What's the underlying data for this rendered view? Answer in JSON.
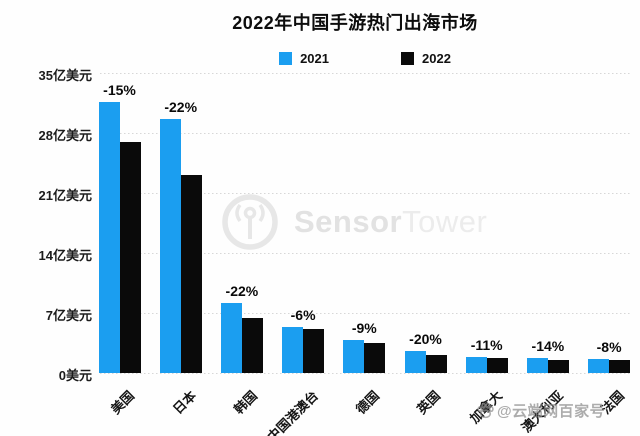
{
  "chart_data": {
    "type": "bar",
    "title": "2022年中国手游热门出海市场",
    "unit": "亿美元",
    "categories": [
      "美国",
      "日本",
      "韩国",
      "中国港澳台",
      "德国",
      "英国",
      "加拿大",
      "澳大利亚",
      "法国"
    ],
    "series": [
      {
        "name": "2021",
        "color": "#1b9ef0",
        "values": [
          31.6,
          29.6,
          8.2,
          5.4,
          3.9,
          2.6,
          1.9,
          1.7,
          1.6
        ]
      },
      {
        "name": "2022",
        "color": "#0a0a0a",
        "values": [
          26.9,
          23.1,
          6.4,
          5.1,
          3.5,
          2.1,
          1.7,
          1.5,
          1.5
        ]
      }
    ],
    "change_labels": [
      "-15%",
      "-22%",
      "-22%",
      "-6%",
      "-9%",
      "-20%",
      "-11%",
      "-14%",
      "-8%"
    ],
    "y_ticks": [
      {
        "value": 35,
        "label": "35亿美元"
      },
      {
        "value": 28,
        "label": "28亿美元"
      },
      {
        "value": 21,
        "label": "21亿美元"
      },
      {
        "value": 14,
        "label": "14亿美元"
      },
      {
        "value": 7,
        "label": "7亿美元"
      },
      {
        "value": 0,
        "label": "0美元"
      }
    ],
    "ylim": [
      0,
      35
    ],
    "grid": "horizontal-dotted",
    "legend_position": "top-center"
  },
  "watermarks": {
    "center": {
      "logo_icon": "sensortower-logo-icon",
      "brand_bold": "Sensor",
      "brand_light": "Tower"
    },
    "bottom_right": {
      "icon": "baidu-paw-icon",
      "text": "@云端网百家号"
    }
  },
  "colors": {
    "bar_2021": "#1b9ef0",
    "bar_2022": "#0a0a0a",
    "gridline": "#d7d7d7",
    "watermark_gray": "#e7e7e7"
  }
}
